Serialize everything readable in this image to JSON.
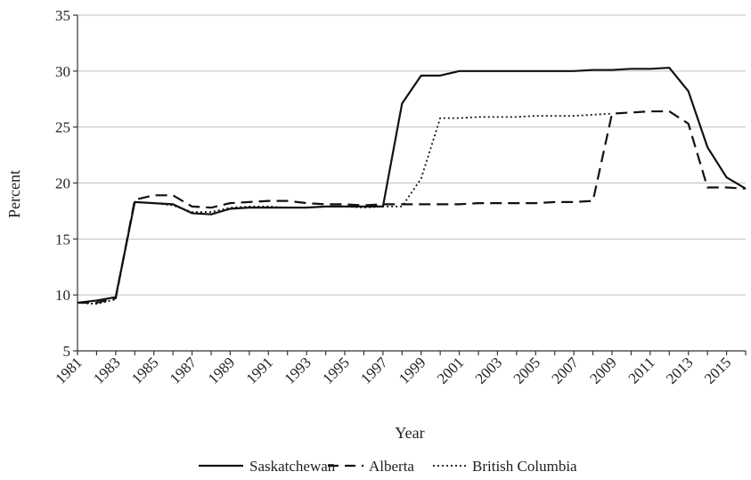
{
  "chart_data": {
    "type": "line",
    "title": "",
    "xlabel": "Year",
    "ylabel": "Percent",
    "ylim": [
      5,
      35
    ],
    "yticks": [
      5,
      10,
      15,
      20,
      25,
      30,
      35
    ],
    "xlim": [
      1981,
      2016
    ],
    "xtick_labels": [
      "1981",
      "1983",
      "1985",
      "1987",
      "1989",
      "1991",
      "1993",
      "1995",
      "1997",
      "1999",
      "2001",
      "2003",
      "2005",
      "2007",
      "2009",
      "2011",
      "2013",
      "2015"
    ],
    "grid": "horizontal",
    "legend_position": "bottom",
    "x": [
      1981,
      1982,
      1983,
      1984,
      1985,
      1986,
      1987,
      1988,
      1989,
      1990,
      1991,
      1992,
      1993,
      1994,
      1995,
      1996,
      1997,
      1998,
      1999,
      2000,
      2001,
      2002,
      2003,
      2004,
      2005,
      2006,
      2007,
      2008,
      2009,
      2010,
      2011,
      2012,
      2013,
      2014,
      2015,
      2016
    ],
    "series": [
      {
        "name": "Saskatchewan",
        "dash": "solid",
        "color": "#111111",
        "values": [
          9.3,
          9.5,
          9.8,
          18.3,
          18.2,
          18.1,
          17.3,
          17.2,
          17.7,
          17.8,
          17.8,
          17.8,
          17.8,
          17.9,
          17.9,
          17.9,
          17.9,
          27.1,
          29.6,
          29.6,
          30.0,
          30.0,
          30.0,
          30.0,
          30.0,
          30.0,
          30.0,
          30.1,
          30.1,
          30.2,
          30.2,
          30.3,
          28.2,
          23.2,
          20.5,
          19.5
        ]
      },
      {
        "name": "Alberta",
        "dash": "dashed",
        "color": "#111111",
        "values": [
          9.3,
          9.3,
          9.7,
          18.5,
          18.9,
          18.9,
          17.9,
          17.8,
          18.2,
          18.3,
          18.4,
          18.4,
          18.2,
          18.1,
          18.1,
          18.0,
          18.1,
          18.1,
          18.1,
          18.1,
          18.1,
          18.2,
          18.2,
          18.2,
          18.2,
          18.3,
          18.3,
          18.4,
          26.2,
          26.3,
          26.4,
          26.4,
          25.3,
          19.6,
          19.6,
          19.5
        ]
      },
      {
        "name": "British Columbia",
        "dash": "dotted",
        "color": "#111111",
        "values": [
          9.3,
          9.2,
          9.6,
          18.3,
          18.2,
          18.0,
          17.4,
          17.4,
          17.8,
          17.9,
          17.9,
          17.8,
          17.8,
          17.9,
          17.9,
          17.8,
          17.9,
          17.9,
          20.4,
          25.8,
          25.8,
          25.9,
          25.9,
          25.9,
          26.0,
          26.0,
          26.0,
          26.1,
          26.2,
          null,
          null,
          null,
          null,
          null,
          null,
          null
        ]
      }
    ]
  }
}
